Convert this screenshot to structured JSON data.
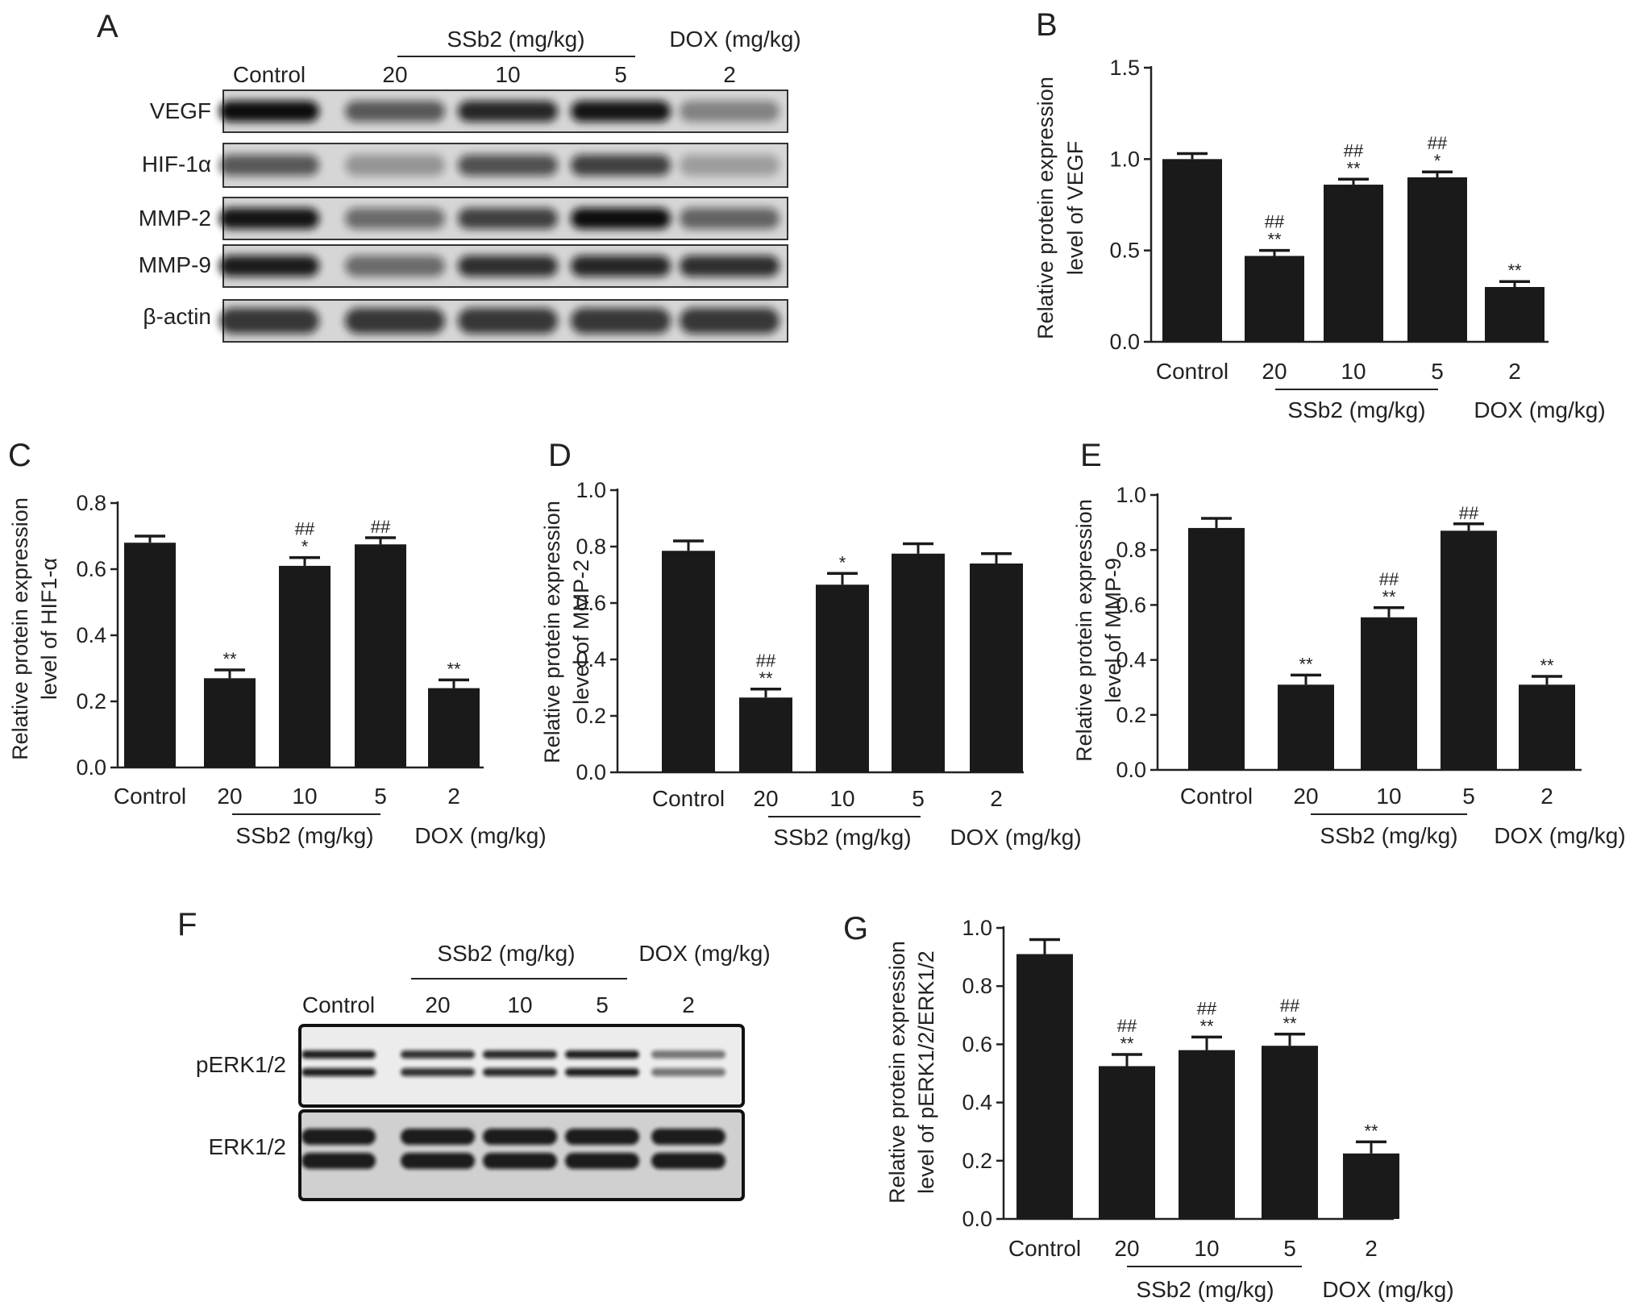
{
  "colors": {
    "bar": "#1a1a1a",
    "axis": "#222222",
    "blot_bg": "#d6d6d6",
    "band": "#101010"
  },
  "blot_A": {
    "panel": "A",
    "header": {
      "ssb2": "SSb2 (mg/kg)",
      "dox": "DOX (mg/kg)"
    },
    "lanes": [
      "Control",
      "20",
      "10",
      "5",
      "2"
    ],
    "rows": [
      {
        "label": "VEGF",
        "intensity": [
          1.0,
          0.55,
          0.85,
          0.95,
          0.3
        ]
      },
      {
        "label": "HIF-1α",
        "intensity": [
          0.55,
          0.2,
          0.6,
          0.7,
          0.15
        ]
      },
      {
        "label": "MMP-2",
        "intensity": [
          0.95,
          0.45,
          0.7,
          1.0,
          0.5
        ]
      },
      {
        "label": "MMP-9",
        "intensity": [
          0.9,
          0.45,
          0.8,
          0.85,
          0.8
        ]
      },
      {
        "label": "β-actin",
        "intensity": [
          0.75,
          0.75,
          0.75,
          0.75,
          0.75
        ]
      }
    ]
  },
  "blot_F": {
    "panel": "F",
    "header": {
      "ssb2": "SSb2 (mg/kg)",
      "dox": "DOX (mg/kg)"
    },
    "lanes": [
      "Control",
      "20",
      "10",
      "5",
      "2"
    ],
    "rows": [
      {
        "label": "pERK1/2",
        "intensity": [
          0.9,
          0.8,
          0.85,
          0.9,
          0.45
        ]
      },
      {
        "label": "ERK1/2",
        "intensity": [
          0.9,
          0.9,
          0.9,
          0.9,
          0.9
        ]
      }
    ]
  },
  "chart_data": [
    {
      "panel": "B",
      "type": "bar",
      "ylabel": [
        "Relative protein expression",
        "level of VEGF"
      ],
      "categories": [
        "Control",
        "20",
        "10",
        "5",
        "2"
      ],
      "values": [
        1.0,
        0.47,
        0.86,
        0.9,
        0.3
      ],
      "errors": [
        0.03,
        0.03,
        0.03,
        0.03,
        0.03
      ],
      "annotations": [
        [
          "",
          ""
        ],
        [
          "##",
          "**"
        ],
        [
          "##",
          "**"
        ],
        [
          "##",
          "*"
        ],
        [
          "",
          "**"
        ]
      ],
      "ylim": [
        0,
        1.5
      ],
      "yticks": [
        "0.0",
        "0.5",
        "1.0",
        "1.5"
      ],
      "groups": {
        "ssb2": "SSb2 (mg/kg)",
        "dox": "DOX (mg/kg)"
      }
    },
    {
      "panel": "C",
      "type": "bar",
      "ylabel": [
        "Relative protein expression",
        "level of HIF1-α"
      ],
      "categories": [
        "Control",
        "20",
        "10",
        "5",
        "2"
      ],
      "values": [
        0.68,
        0.27,
        0.61,
        0.675,
        0.24
      ],
      "errors": [
        0.02,
        0.025,
        0.025,
        0.02,
        0.025
      ],
      "annotations": [
        [
          "",
          ""
        ],
        [
          "",
          "**"
        ],
        [
          "##",
          "*"
        ],
        [
          "",
          "##"
        ],
        [
          "",
          "**"
        ]
      ],
      "ylim": [
        0,
        0.8
      ],
      "yticks": [
        "0.0",
        "0.2",
        "0.4",
        "0.6",
        "0.8"
      ],
      "groups": {
        "ssb2": "SSb2 (mg/kg)",
        "dox": "DOX (mg/kg)"
      }
    },
    {
      "panel": "D",
      "type": "bar",
      "ylabel": [
        "Relative protein expression",
        "level of MMP-2"
      ],
      "categories": [
        "Control",
        "20",
        "10",
        "5",
        "2"
      ],
      "values": [
        0.785,
        0.265,
        0.665,
        0.775,
        0.74
      ],
      "errors": [
        0.035,
        0.03,
        0.04,
        0.035,
        0.035
      ],
      "annotations": [
        [
          "",
          ""
        ],
        [
          "##",
          "**"
        ],
        [
          "",
          "*"
        ],
        [
          "",
          ""
        ],
        [
          "",
          ""
        ]
      ],
      "ylim": [
        0,
        1.0
      ],
      "yticks": [
        "0.0",
        "0.2",
        "0.4",
        "0.6",
        "0.8",
        "1.0"
      ],
      "groups": {
        "ssb2": "SSb2 (mg/kg)",
        "dox": "DOX (mg/kg)"
      }
    },
    {
      "panel": "E",
      "type": "bar",
      "ylabel": [
        "Relative protein expression",
        "level of MMP-9"
      ],
      "categories": [
        "Control",
        "20",
        "10",
        "5",
        "2"
      ],
      "values": [
        0.88,
        0.31,
        0.555,
        0.87,
        0.31
      ],
      "errors": [
        0.035,
        0.035,
        0.035,
        0.025,
        0.03
      ],
      "annotations": [
        [
          "",
          ""
        ],
        [
          "",
          "**"
        ],
        [
          "##",
          "**"
        ],
        [
          "",
          "##"
        ],
        [
          "",
          "**"
        ]
      ],
      "ylim": [
        0,
        1.0
      ],
      "yticks": [
        "0.0",
        "0.2",
        "0.4",
        "0.6",
        "0.8",
        "1.0"
      ],
      "groups": {
        "ssb2": "SSb2 (mg/kg)",
        "dox": "DOX (mg/kg)"
      }
    },
    {
      "panel": "G",
      "type": "bar",
      "ylabel": [
        "Relative protein expression",
        "level of pERK1/2/ERK1/2"
      ],
      "categories": [
        "Control",
        "20",
        "10",
        "5",
        "2"
      ],
      "values": [
        0.91,
        0.525,
        0.58,
        0.595,
        0.225
      ],
      "errors": [
        0.05,
        0.04,
        0.045,
        0.04,
        0.04
      ],
      "annotations": [
        [
          "",
          ""
        ],
        [
          "##",
          "**"
        ],
        [
          "##",
          "**"
        ],
        [
          "##",
          "**"
        ],
        [
          "",
          "**"
        ]
      ],
      "ylim": [
        0,
        1.0
      ],
      "yticks": [
        "0.0",
        "0.2",
        "0.4",
        "0.6",
        "0.8",
        "1.0"
      ],
      "groups": {
        "ssb2": "SSb2 (mg/kg)",
        "dox": "DOX (mg/kg)"
      }
    }
  ]
}
